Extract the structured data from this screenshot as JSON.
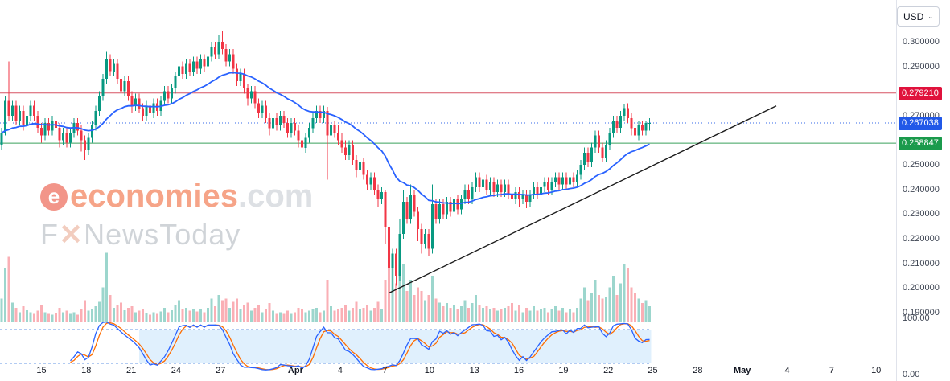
{
  "currency_selector": {
    "label": "USD",
    "caret": "⌄"
  },
  "watermark": {
    "logo_char": "e",
    "brand": "economies",
    "tld": ".com",
    "sub_prefix": "F",
    "sub_x": "✕",
    "sub_suffix": "NewsToday",
    "brand_color": "#F05A28",
    "tld_color": "#C3C8CF",
    "sub_color": "#ABB1BA"
  },
  "chart_data": {
    "type": "candlestick",
    "currency": "USD",
    "ylim": [
      0.19,
      0.305
    ],
    "grid": false,
    "candle_up_color": "#089981",
    "candle_down_color": "#F23645",
    "y_ticks": [
      {
        "label": "0.300000",
        "value": 0.3
      },
      {
        "label": "0.290000",
        "value": 0.29
      },
      {
        "label": "0.270000",
        "value": 0.27
      },
      {
        "label": "0.250000",
        "value": 0.25
      },
      {
        "label": "0.240000",
        "value": 0.24
      },
      {
        "label": "0.230000",
        "value": 0.23
      },
      {
        "label": "0.220000",
        "value": 0.22
      },
      {
        "label": "0.210000",
        "value": 0.21
      },
      {
        "label": "0.200000",
        "value": 0.2
      },
      {
        "label": "0.190000",
        "value": 0.19
      }
    ],
    "x_labels": [
      {
        "label": "15",
        "i": 11
      },
      {
        "label": "18",
        "i": 23.4
      },
      {
        "label": "21",
        "i": 35.8
      },
      {
        "label": "24",
        "i": 48.2
      },
      {
        "label": "27",
        "i": 60.5
      },
      {
        "label": "Apr",
        "i": 81.2,
        "bold": true
      },
      {
        "label": "4",
        "i": 93.5
      },
      {
        "label": "7",
        "i": 105.9
      },
      {
        "label": "10",
        "i": 118.2
      },
      {
        "label": "13",
        "i": 130.6
      },
      {
        "label": "16",
        "i": 142.9
      },
      {
        "label": "19",
        "i": 155.2
      },
      {
        "label": "22",
        "i": 167.6
      },
      {
        "label": "25",
        "i": 179.9
      },
      {
        "label": "28",
        "i": 192.3
      },
      {
        "label": "May",
        "i": 204.6,
        "bold": true
      },
      {
        "label": "4",
        "i": 217
      },
      {
        "label": "7",
        "i": 229.3
      },
      {
        "label": "10",
        "i": 241.6
      }
    ],
    "hlines": [
      {
        "role": "resistance",
        "label": "0.279210",
        "value": 0.27921,
        "color": "#E0123C",
        "line_color": "#D75463",
        "style": "solid"
      },
      {
        "role": "support",
        "label": "0.258847",
        "value": 0.258847,
        "color": "#1A9A4C",
        "line_color": "#3AA05C",
        "style": "solid"
      }
    ],
    "last_price": {
      "label": "0.267038",
      "value": 0.267038,
      "color": "#2158E8",
      "style": "dotted"
    },
    "overlays": {
      "ma": {
        "kind": "ema",
        "period": 28,
        "color": "#2962FF"
      },
      "trendline": {
        "from": {
          "i": 107,
          "price": 0.198
        },
        "to": {
          "i": 214,
          "price": 0.274
        },
        "color": "#1C1C1C"
      }
    },
    "oscillator": {
      "kind": "stochastic",
      "upper": 80,
      "lower": 20,
      "band_start_i": 38,
      "k_color": "#2962FF",
      "d_color": "#FF6D00",
      "band_fill": "#BBDEFB",
      "band_opacity": 0.45,
      "y_ticks": [
        {
          "label": "100.00",
          "value": 100
        },
        {
          "label": "0.00",
          "value": 0
        }
      ]
    },
    "candles": [
      [
        0.258,
        0.265,
        0.256,
        0.263
      ],
      [
        0.263,
        0.278,
        0.262,
        0.276
      ],
      [
        0.276,
        0.292,
        0.268,
        0.27
      ],
      [
        0.27,
        0.276,
        0.268,
        0.274
      ],
      [
        0.274,
        0.276,
        0.266,
        0.268
      ],
      [
        0.268,
        0.274,
        0.266,
        0.272
      ],
      [
        0.272,
        0.274,
        0.264,
        0.266
      ],
      [
        0.266,
        0.275,
        0.264,
        0.27
      ],
      [
        0.27,
        0.276,
        0.268,
        0.274
      ],
      [
        0.274,
        0.276,
        0.268,
        0.27
      ],
      [
        0.27,
        0.272,
        0.263,
        0.265
      ],
      [
        0.265,
        0.267,
        0.259,
        0.262
      ],
      [
        0.262,
        0.269,
        0.26,
        0.267
      ],
      [
        0.267,
        0.269,
        0.262,
        0.264
      ],
      [
        0.264,
        0.27,
        0.262,
        0.268
      ],
      [
        0.268,
        0.27,
        0.263,
        0.265
      ],
      [
        0.265,
        0.267,
        0.257,
        0.26
      ],
      [
        0.26,
        0.265,
        0.258,
        0.263
      ],
      [
        0.263,
        0.265,
        0.257,
        0.259
      ],
      [
        0.259,
        0.265,
        0.257,
        0.263
      ],
      [
        0.263,
        0.269,
        0.261,
        0.267
      ],
      [
        0.267,
        0.269,
        0.262,
        0.264
      ],
      [
        0.264,
        0.266,
        0.2555,
        0.26
      ],
      [
        0.26,
        0.262,
        0.252,
        0.256
      ],
      [
        0.256,
        0.263,
        0.254,
        0.261
      ],
      [
        0.261,
        0.268,
        0.259,
        0.266
      ],
      [
        0.266,
        0.274,
        0.264,
        0.272
      ],
      [
        0.272,
        0.28,
        0.27,
        0.278
      ],
      [
        0.278,
        0.287,
        0.276,
        0.285
      ],
      [
        0.285,
        0.296,
        0.283,
        0.293
      ],
      [
        0.293,
        0.295,
        0.286,
        0.288
      ],
      [
        0.288,
        0.293,
        0.286,
        0.291
      ],
      [
        0.291,
        0.293,
        0.283,
        0.285
      ],
      [
        0.285,
        0.287,
        0.278,
        0.28
      ],
      [
        0.28,
        0.286,
        0.278,
        0.284
      ],
      [
        0.284,
        0.286,
        0.276,
        0.278
      ],
      [
        0.278,
        0.28,
        0.271,
        0.274
      ],
      [
        0.274,
        0.279,
        0.272,
        0.277
      ],
      [
        0.277,
        0.279,
        0.271,
        0.273
      ],
      [
        0.273,
        0.275,
        0.268,
        0.27
      ],
      [
        0.27,
        0.276,
        0.268,
        0.274
      ],
      [
        0.274,
        0.276,
        0.269,
        0.271
      ],
      [
        0.271,
        0.277,
        0.269,
        0.275
      ],
      [
        0.275,
        0.277,
        0.27,
        0.272
      ],
      [
        0.272,
        0.278,
        0.27,
        0.276
      ],
      [
        0.276,
        0.282,
        0.274,
        0.28
      ],
      [
        0.28,
        0.282,
        0.275,
        0.277
      ],
      [
        0.277,
        0.283,
        0.275,
        0.281
      ],
      [
        0.281,
        0.288,
        0.279,
        0.286
      ],
      [
        0.286,
        0.292,
        0.284,
        0.29
      ],
      [
        0.29,
        0.292,
        0.285,
        0.287
      ],
      [
        0.287,
        0.293,
        0.285,
        0.291
      ],
      [
        0.291,
        0.293,
        0.286,
        0.288
      ],
      [
        0.288,
        0.294,
        0.286,
        0.292
      ],
      [
        0.292,
        0.294,
        0.287,
        0.289
      ],
      [
        0.289,
        0.295,
        0.287,
        0.293
      ],
      [
        0.293,
        0.295,
        0.288,
        0.29
      ],
      [
        0.29,
        0.296,
        0.288,
        0.294
      ],
      [
        0.294,
        0.3,
        0.292,
        0.298
      ],
      [
        0.298,
        0.3,
        0.293,
        0.295
      ],
      [
        0.295,
        0.303,
        0.293,
        0.3
      ],
      [
        0.3,
        0.3045,
        0.295,
        0.297
      ],
      [
        0.297,
        0.299,
        0.29,
        0.292
      ],
      [
        0.292,
        0.297,
        0.29,
        0.295
      ],
      [
        0.295,
        0.297,
        0.287,
        0.289
      ],
      [
        0.289,
        0.291,
        0.282,
        0.284
      ],
      [
        0.284,
        0.289,
        0.282,
        0.287
      ],
      [
        0.287,
        0.289,
        0.279,
        0.281
      ],
      [
        0.281,
        0.283,
        0.274,
        0.277
      ],
      [
        0.277,
        0.282,
        0.275,
        0.28
      ],
      [
        0.28,
        0.282,
        0.273,
        0.275
      ],
      [
        0.275,
        0.277,
        0.269,
        0.271
      ],
      [
        0.271,
        0.276,
        0.269,
        0.274
      ],
      [
        0.274,
        0.276,
        0.267,
        0.269
      ],
      [
        0.269,
        0.271,
        0.262,
        0.265
      ],
      [
        0.265,
        0.271,
        0.263,
        0.269
      ],
      [
        0.269,
        0.271,
        0.264,
        0.266
      ],
      [
        0.266,
        0.272,
        0.264,
        0.27
      ],
      [
        0.27,
        0.272,
        0.265,
        0.267
      ],
      [
        0.267,
        0.269,
        0.261,
        0.263
      ],
      [
        0.263,
        0.269,
        0.261,
        0.267
      ],
      [
        0.267,
        0.269,
        0.262,
        0.264
      ],
      [
        0.264,
        0.266,
        0.257,
        0.26
      ],
      [
        0.26,
        0.262,
        0.255,
        0.257
      ],
      [
        0.257,
        0.263,
        0.255,
        0.261
      ],
      [
        0.261,
        0.267,
        0.259,
        0.265
      ],
      [
        0.265,
        0.271,
        0.263,
        0.269
      ],
      [
        0.269,
        0.274,
        0.267,
        0.272
      ],
      [
        0.272,
        0.274,
        0.267,
        0.269
      ],
      [
        0.269,
        0.274,
        0.267,
        0.272
      ],
      [
        0.272,
        0.2735,
        0.244,
        0.262
      ],
      [
        0.262,
        0.268,
        0.26,
        0.266
      ],
      [
        0.266,
        0.268,
        0.261,
        0.263
      ],
      [
        0.263,
        0.266,
        0.258,
        0.26
      ],
      [
        0.26,
        0.263,
        0.255,
        0.257
      ],
      [
        0.257,
        0.26,
        0.252,
        0.254
      ],
      [
        0.254,
        0.26,
        0.252,
        0.258
      ],
      [
        0.258,
        0.26,
        0.25,
        0.252
      ],
      [
        0.252,
        0.254,
        0.245,
        0.248
      ],
      [
        0.248,
        0.253,
        0.246,
        0.251
      ],
      [
        0.251,
        0.253,
        0.244,
        0.246
      ],
      [
        0.246,
        0.248,
        0.24,
        0.242
      ],
      [
        0.242,
        0.247,
        0.24,
        0.245
      ],
      [
        0.245,
        0.247,
        0.238,
        0.24
      ],
      [
        0.24,
        0.242,
        0.233,
        0.236
      ],
      [
        0.236,
        0.241,
        0.234,
        0.239
      ],
      [
        0.239,
        0.24,
        0.218,
        0.225
      ],
      [
        0.225,
        0.227,
        0.2,
        0.208
      ],
      [
        0.208,
        0.216,
        0.1985,
        0.214
      ],
      [
        0.214,
        0.216,
        0.201,
        0.205
      ],
      [
        0.205,
        0.228,
        0.203,
        0.222
      ],
      [
        0.222,
        0.24,
        0.22,
        0.235
      ],
      [
        0.235,
        0.237,
        0.226,
        0.228
      ],
      [
        0.228,
        0.242,
        0.226,
        0.238
      ],
      [
        0.238,
        0.24,
        0.229,
        0.231
      ],
      [
        0.231,
        0.233,
        0.219,
        0.224
      ],
      [
        0.224,
        0.226,
        0.214,
        0.218
      ],
      [
        0.218,
        0.224,
        0.216,
        0.222
      ],
      [
        0.222,
        0.224,
        0.213,
        0.216
      ],
      [
        0.216,
        0.242,
        0.214,
        0.234
      ],
      [
        0.234,
        0.236,
        0.226,
        0.228
      ],
      [
        0.228,
        0.236,
        0.226,
        0.234
      ],
      [
        0.234,
        0.236,
        0.228,
        0.23
      ],
      [
        0.23,
        0.237,
        0.228,
        0.235
      ],
      [
        0.235,
        0.237,
        0.229,
        0.231
      ],
      [
        0.231,
        0.238,
        0.229,
        0.236
      ],
      [
        0.236,
        0.238,
        0.23,
        0.232
      ],
      [
        0.232,
        0.238,
        0.23,
        0.236
      ],
      [
        0.236,
        0.242,
        0.234,
        0.24
      ],
      [
        0.24,
        0.242,
        0.234,
        0.236
      ],
      [
        0.236,
        0.243,
        0.234,
        0.241
      ],
      [
        0.241,
        0.247,
        0.239,
        0.245
      ],
      [
        0.245,
        0.247,
        0.239,
        0.241
      ],
      [
        0.241,
        0.246,
        0.239,
        0.244
      ],
      [
        0.244,
        0.246,
        0.238,
        0.24
      ],
      [
        0.24,
        0.245,
        0.238,
        0.243
      ],
      [
        0.243,
        0.245,
        0.237,
        0.239
      ],
      [
        0.239,
        0.244,
        0.237,
        0.242
      ],
      [
        0.242,
        0.244,
        0.237,
        0.239
      ],
      [
        0.239,
        0.244,
        0.237,
        0.242
      ],
      [
        0.242,
        0.244,
        0.236,
        0.238
      ],
      [
        0.238,
        0.24,
        0.234,
        0.236
      ],
      [
        0.236,
        0.241,
        0.234,
        0.239
      ],
      [
        0.239,
        0.241,
        0.233,
        0.236
      ],
      [
        0.236,
        0.24,
        0.234,
        0.238
      ],
      [
        0.238,
        0.24,
        0.2325,
        0.235
      ],
      [
        0.235,
        0.24,
        0.233,
        0.238
      ],
      [
        0.238,
        0.243,
        0.236,
        0.241
      ],
      [
        0.241,
        0.243,
        0.236,
        0.238
      ],
      [
        0.238,
        0.243,
        0.236,
        0.241
      ],
      [
        0.241,
        0.245,
        0.239,
        0.243
      ],
      [
        0.243,
        0.245,
        0.238,
        0.24
      ],
      [
        0.24,
        0.245,
        0.238,
        0.243
      ],
      [
        0.243,
        0.247,
        0.241,
        0.245
      ],
      [
        0.245,
        0.247,
        0.24,
        0.242
      ],
      [
        0.242,
        0.247,
        0.24,
        0.245
      ],
      [
        0.245,
        0.247,
        0.24,
        0.242
      ],
      [
        0.242,
        0.247,
        0.24,
        0.245
      ],
      [
        0.245,
        0.247,
        0.241,
        0.243
      ],
      [
        0.243,
        0.248,
        0.241,
        0.246
      ],
      [
        0.246,
        0.252,
        0.244,
        0.25
      ],
      [
        0.25,
        0.257,
        0.248,
        0.255
      ],
      [
        0.255,
        0.257,
        0.249,
        0.251
      ],
      [
        0.251,
        0.259,
        0.249,
        0.257
      ],
      [
        0.257,
        0.264,
        0.255,
        0.262
      ],
      [
        0.262,
        0.264,
        0.255,
        0.257
      ],
      [
        0.257,
        0.259,
        0.251,
        0.253
      ],
      [
        0.253,
        0.26,
        0.251,
        0.258
      ],
      [
        0.258,
        0.265,
        0.256,
        0.263
      ],
      [
        0.263,
        0.27,
        0.261,
        0.268
      ],
      [
        0.268,
        0.27,
        0.263,
        0.265
      ],
      [
        0.265,
        0.272,
        0.263,
        0.27
      ],
      [
        0.27,
        0.2745,
        0.268,
        0.273
      ],
      [
        0.273,
        0.275,
        0.267,
        0.269
      ],
      [
        0.269,
        0.271,
        0.262,
        0.265
      ],
      [
        0.265,
        0.267,
        0.26,
        0.262
      ],
      [
        0.262,
        0.268,
        0.26,
        0.266
      ],
      [
        0.266,
        0.268,
        0.262,
        0.264
      ],
      [
        0.264,
        0.268,
        0.262,
        0.267
      ],
      [
        0.267,
        0.269,
        0.264,
        0.267
      ]
    ],
    "volumes": [
      30,
      70,
      85,
      25,
      18,
      12,
      20,
      15,
      12,
      10,
      14,
      22,
      12,
      10,
      9,
      11,
      18,
      12,
      14,
      10,
      12,
      9,
      16,
      28,
      14,
      16,
      20,
      26,
      45,
      90,
      35,
      18,
      22,
      25,
      15,
      18,
      20,
      12,
      14,
      16,
      11,
      9,
      12,
      10,
      13,
      18,
      12,
      15,
      22,
      28,
      16,
      18,
      14,
      17,
      13,
      16,
      12,
      18,
      30,
      20,
      35,
      28,
      30,
      18,
      26,
      30,
      16,
      22,
      25,
      14,
      18,
      22,
      12,
      16,
      24,
      14,
      10,
      12,
      10,
      14,
      10,
      12,
      18,
      16,
      12,
      14,
      16,
      18,
      12,
      14,
      55,
      20,
      14,
      16,
      18,
      22,
      14,
      18,
      26,
      16,
      18,
      22,
      14,
      18,
      26,
      16,
      55,
      85,
      70,
      50,
      65,
      75,
      40,
      55,
      35,
      45,
      40,
      28,
      35,
      60,
      30,
      25,
      20,
      24,
      18,
      22,
      16,
      20,
      28,
      18,
      24,
      35,
      22,
      18,
      20,
      16,
      18,
      14,
      16,
      18,
      20,
      24,
      14,
      22,
      12,
      18,
      14,
      20,
      14,
      16,
      18,
      12,
      16,
      20,
      14,
      18,
      12,
      16,
      12,
      18,
      30,
      45,
      28,
      38,
      55,
      35,
      30,
      32,
      45,
      60,
      35,
      50,
      75,
      70,
      45,
      38,
      30,
      24,
      28,
      20
    ]
  }
}
